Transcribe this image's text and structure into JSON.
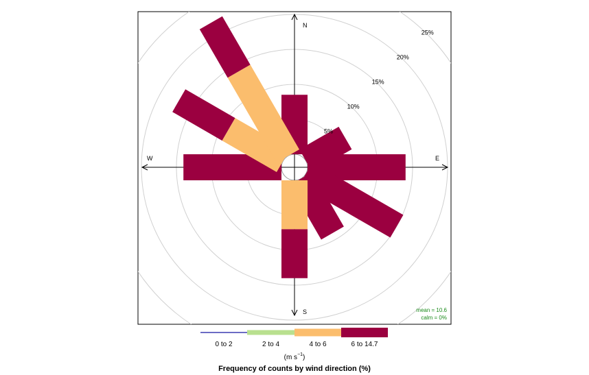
{
  "chart_data": {
    "type": "windrose",
    "title": "Frequency of counts by wind direction (%)",
    "units": "(m s",
    "units_exp": "−1",
    "units_close": ")",
    "compass": {
      "n": "N",
      "e": "E",
      "s": "S",
      "w": "W"
    },
    "rings": [
      {
        "value": 5,
        "label": "5%"
      },
      {
        "value": 10,
        "label": "10%"
      },
      {
        "value": 15,
        "label": "15%"
      },
      {
        "value": 20,
        "label": "20%"
      },
      {
        "value": 25,
        "label": "25%"
      }
    ],
    "bins": [
      {
        "label": "0 to 2",
        "color": "#3b3bb0"
      },
      {
        "label": "2 to 4",
        "color": "#b9e08f"
      },
      {
        "label": "4 to 6",
        "color": "#fbbd6d"
      },
      {
        "label": "6 to 14.7",
        "color": "#9b0040"
      }
    ],
    "directions": [
      {
        "angle": 0,
        "values": [
          0,
          0,
          0,
          8.5
        ]
      },
      {
        "angle": 60,
        "values": [
          0,
          0,
          0,
          6.5
        ]
      },
      {
        "angle": 90,
        "values": [
          0,
          0,
          0,
          14
        ]
      },
      {
        "angle": 120,
        "values": [
          0,
          0,
          0,
          15
        ]
      },
      {
        "angle": 150,
        "values": [
          0,
          0,
          0,
          9
        ]
      },
      {
        "angle": 180,
        "values": [
          0,
          0,
          7,
          7
        ]
      },
      {
        "angle": 270,
        "values": [
          0,
          0,
          0,
          14
        ]
      },
      {
        "angle": 300,
        "values": [
          0,
          0,
          9,
          8.2
        ]
      },
      {
        "angle": 330,
        "values": [
          0,
          0,
          14,
          8
        ]
      }
    ],
    "mean_text": "mean = 10.6",
    "calm_text": "calm = 0%"
  }
}
